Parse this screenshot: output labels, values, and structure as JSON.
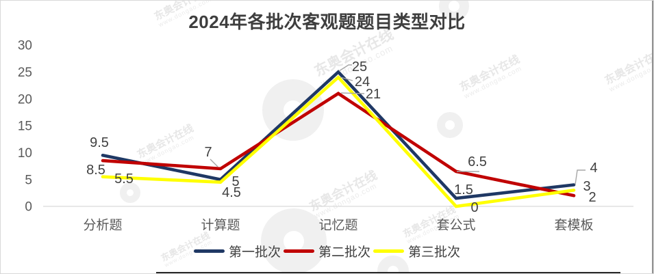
{
  "title": "2024年各批次客观题题目类型对比",
  "chart_data": {
    "type": "line",
    "title": "2024年各批次客观题题目类型对比",
    "categories": [
      "分析题",
      "计算题",
      "记忆题",
      "套公式",
      "套模板"
    ],
    "series": [
      {
        "name": "第一批次",
        "color": "#1F3864",
        "values": [
          9.5,
          5,
          25,
          1.5,
          4
        ]
      },
      {
        "name": "第二批次",
        "color": "#C00000",
        "values": [
          8.5,
          7,
          21,
          6.5,
          2
        ]
      },
      {
        "name": "第三批次",
        "color": "#FFFF00",
        "values": [
          5.5,
          4.5,
          24,
          0,
          3
        ]
      }
    ],
    "ylim": [
      0,
      30
    ],
    "yticks": [
      0,
      5,
      10,
      15,
      20,
      25,
      30
    ],
    "grid": false,
    "data_labels": true,
    "legend_position": "bottom"
  },
  "colors": {
    "tick_text": "#595959",
    "category_text": "#595959",
    "data_label_text": "#404040",
    "leader_line": "#A6A6A6",
    "axis_line": "#D9D9D9"
  },
  "watermark": {
    "line1": "东奥会计在线",
    "line2": "www.dongao.com"
  }
}
